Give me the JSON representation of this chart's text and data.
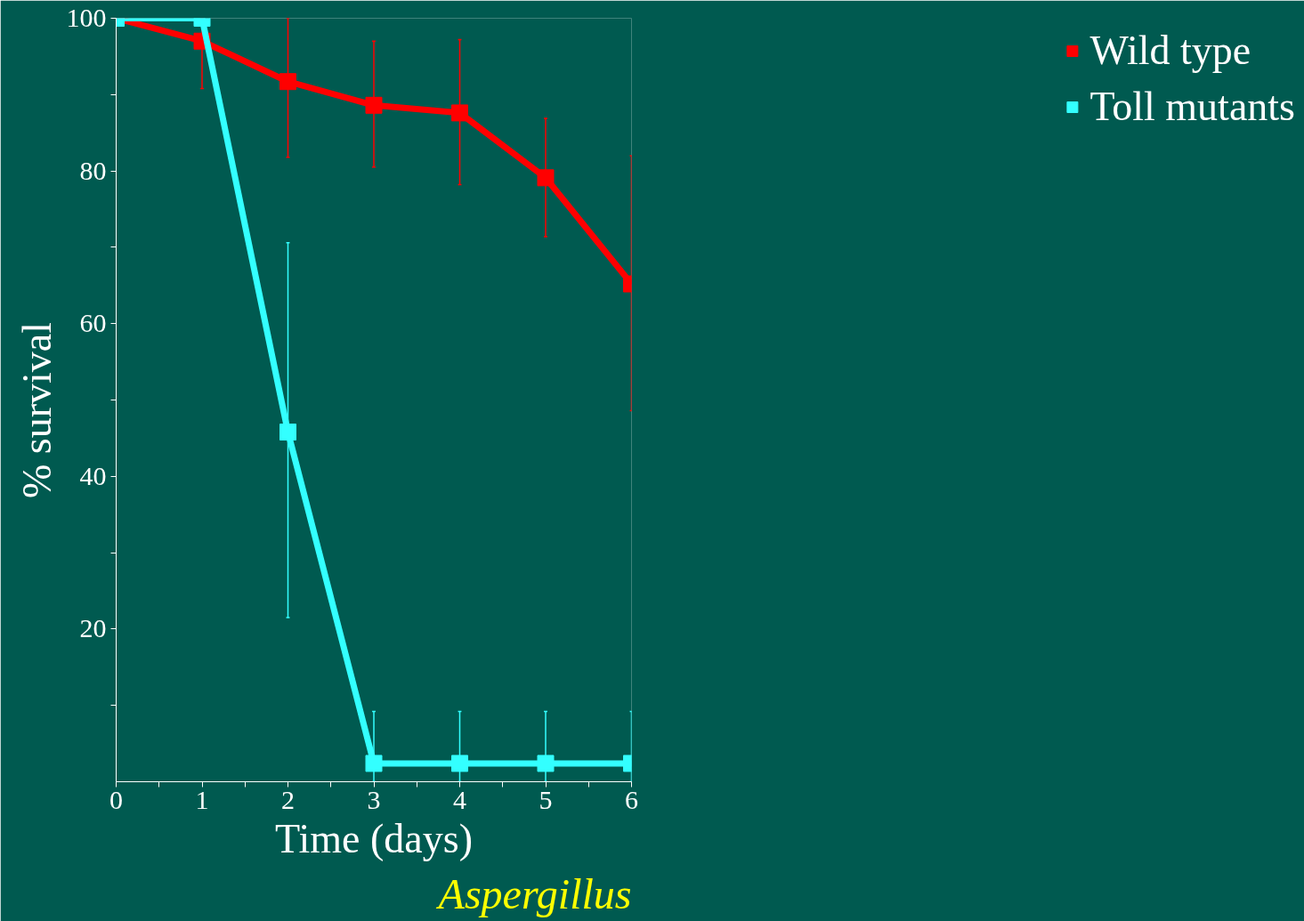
{
  "chart_data": {
    "type": "line",
    "xlabel": "Time (days)",
    "ylabel": "%   survival",
    "x": [
      0,
      1,
      2,
      3,
      4,
      5,
      6
    ],
    "xlim": [
      0,
      6
    ],
    "xticks": [
      0,
      {
        "value": 0.5,
        "label": null
      },
      1,
      {
        "value": 1.5,
        "label": null
      },
      2,
      {
        "value": 2.5,
        "label": null
      },
      3,
      {
        "value": 3.5,
        "label": null
      },
      4,
      {
        "value": 4.5,
        "label": null
      },
      5,
      {
        "value": 5.5,
        "label": null
      },
      6
    ],
    "ylim": [
      0,
      100
    ],
    "yticks": [
      {
        "value": 10,
        "label": null
      },
      20,
      {
        "value": 30,
        "label": null
      },
      40,
      {
        "value": 50,
        "label": null
      },
      60,
      {
        "value": 70,
        "label": null
      },
      80,
      {
        "value": 90,
        "label": null
      },
      100
    ],
    "series": [
      {
        "name": "Wild type",
        "color": "#ff0000",
        "values": [
          100,
          97,
          91.7,
          88.6,
          87.6,
          79.1,
          65.2
        ],
        "errors": [
          null,
          [
            90.8,
            100
          ],
          [
            81.8,
            100
          ],
          [
            80.5,
            97
          ],
          [
            78.2,
            97.2
          ],
          [
            71.4,
            86.9
          ],
          [
            48.6,
            82
          ]
        ]
      },
      {
        "name": "Toll mutants",
        "color": "#33ffff",
        "values": [
          100,
          100,
          45.8,
          2.4,
          2.4,
          2.4,
          2.4
        ],
        "errors": [
          null,
          null,
          [
            21.5,
            70.6
          ],
          [
            0,
            9.2
          ],
          [
            0,
            9.2
          ],
          [
            0,
            9.2
          ],
          [
            0,
            9.2
          ]
        ]
      }
    ],
    "annotations": [
      "Aspergillus"
    ],
    "marker": "square",
    "line_style": "solid",
    "grid": false,
    "legend": "right"
  }
}
